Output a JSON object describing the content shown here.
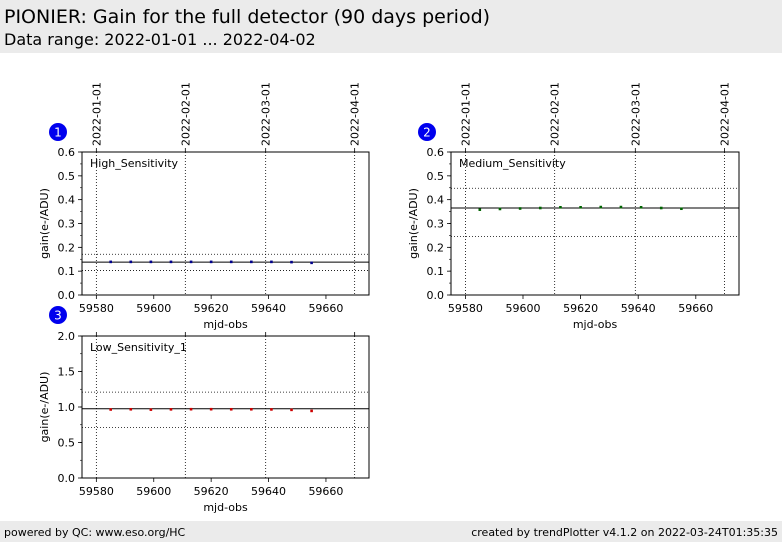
{
  "header": {
    "title": "PIONIER: Gain for the full detector (90 days period)",
    "subtitle": "Data range: 2022-01-01 ... 2022-04-02"
  },
  "footer": {
    "left": "powered by QC: www.eso.org/HC",
    "right": "created by trendPlotter v4.1.2 on 2022-03-24T01:35:35"
  },
  "colors": {
    "header_bg": "#ebebeb",
    "badge": "#0000ee",
    "high": "#00008b",
    "medium": "#006400",
    "low": "#cc0000"
  },
  "chart_data": [
    {
      "type": "scatter",
      "badge": "1",
      "label": "High_Sensitivity",
      "xlabel": "mjd-obs",
      "ylabel": "gain(e-/ADU)",
      "xlim": [
        59575,
        59675
      ],
      "ylim": [
        0.0,
        0.6
      ],
      "xticks": [
        59580,
        59600,
        59620,
        59640,
        59660
      ],
      "yticks": [
        0.0,
        0.1,
        0.2,
        0.3,
        0.4,
        0.5,
        0.6
      ],
      "ytick_labels": [
        "0.0",
        "0.1",
        "0.2",
        "0.3",
        "0.4",
        "0.5",
        "0.6"
      ],
      "date_ticks": [
        {
          "mjd": 59580,
          "label": "2022-01-01"
        },
        {
          "mjd": 59611,
          "label": "2022-02-01"
        },
        {
          "mjd": 59639,
          "label": "2022-03-01"
        },
        {
          "mjd": 59670,
          "label": "2022-04-01"
        }
      ],
      "color": "#00008b",
      "mean": 0.138,
      "band": [
        0.103,
        0.171
      ],
      "x": [
        59585,
        59592,
        59599,
        59606,
        59613,
        59620,
        59627,
        59634,
        59641,
        59648,
        59655
      ],
      "y": [
        0.139,
        0.139,
        0.139,
        0.139,
        0.139,
        0.139,
        0.139,
        0.139,
        0.139,
        0.138,
        0.135
      ]
    },
    {
      "type": "scatter",
      "badge": "2",
      "label": "Medium_Sensitivity",
      "xlabel": "mjd-obs",
      "ylabel": "gain(e-/ADU)",
      "xlim": [
        59575,
        59675
      ],
      "ylim": [
        0.0,
        0.6
      ],
      "xticks": [
        59580,
        59600,
        59620,
        59640,
        59660
      ],
      "yticks": [
        0.0,
        0.1,
        0.2,
        0.3,
        0.4,
        0.5,
        0.6
      ],
      "ytick_labels": [
        "0.0",
        "0.1",
        "0.2",
        "0.3",
        "0.4",
        "0.5",
        "0.6"
      ],
      "date_ticks": [
        {
          "mjd": 59580,
          "label": "2022-01-01"
        },
        {
          "mjd": 59611,
          "label": "2022-02-01"
        },
        {
          "mjd": 59639,
          "label": "2022-03-01"
        },
        {
          "mjd": 59670,
          "label": "2022-04-01"
        }
      ],
      "color": "#006400",
      "mean": 0.365,
      "band": [
        0.245,
        0.448
      ],
      "x": [
        59585,
        59592,
        59599,
        59606,
        59613,
        59620,
        59627,
        59634,
        59641,
        59648,
        59655
      ],
      "y": [
        0.358,
        0.361,
        0.363,
        0.365,
        0.368,
        0.368,
        0.369,
        0.369,
        0.368,
        0.365,
        0.362
      ]
    },
    {
      "type": "scatter",
      "badge": "3",
      "label": "Low_Sensitivity_1",
      "xlabel": "mjd-obs",
      "ylabel": "gain(e-/ADU)",
      "xlim": [
        59575,
        59675
      ],
      "ylim": [
        0.0,
        2.0
      ],
      "xticks": [
        59580,
        59600,
        59620,
        59640,
        59660
      ],
      "yticks": [
        0.0,
        0.5,
        1.0,
        1.5,
        2.0
      ],
      "ytick_labels": [
        "0.0",
        "0.5",
        "1.0",
        "1.5",
        "2.0"
      ],
      "date_ticks": [
        {
          "mjd": 59580,
          "label": ""
        },
        {
          "mjd": 59611,
          "label": ""
        },
        {
          "mjd": 59639,
          "label": ""
        },
        {
          "mjd": 59670,
          "label": ""
        }
      ],
      "color": "#cc0000",
      "mean": 0.975,
      "band": [
        0.71,
        1.21
      ],
      "x": [
        59585,
        59592,
        59599,
        59606,
        59613,
        59620,
        59627,
        59634,
        59641,
        59648,
        59655
      ],
      "y": [
        0.965,
        0.968,
        0.963,
        0.967,
        0.969,
        0.969,
        0.968,
        0.968,
        0.966,
        0.96,
        0.945
      ]
    }
  ]
}
